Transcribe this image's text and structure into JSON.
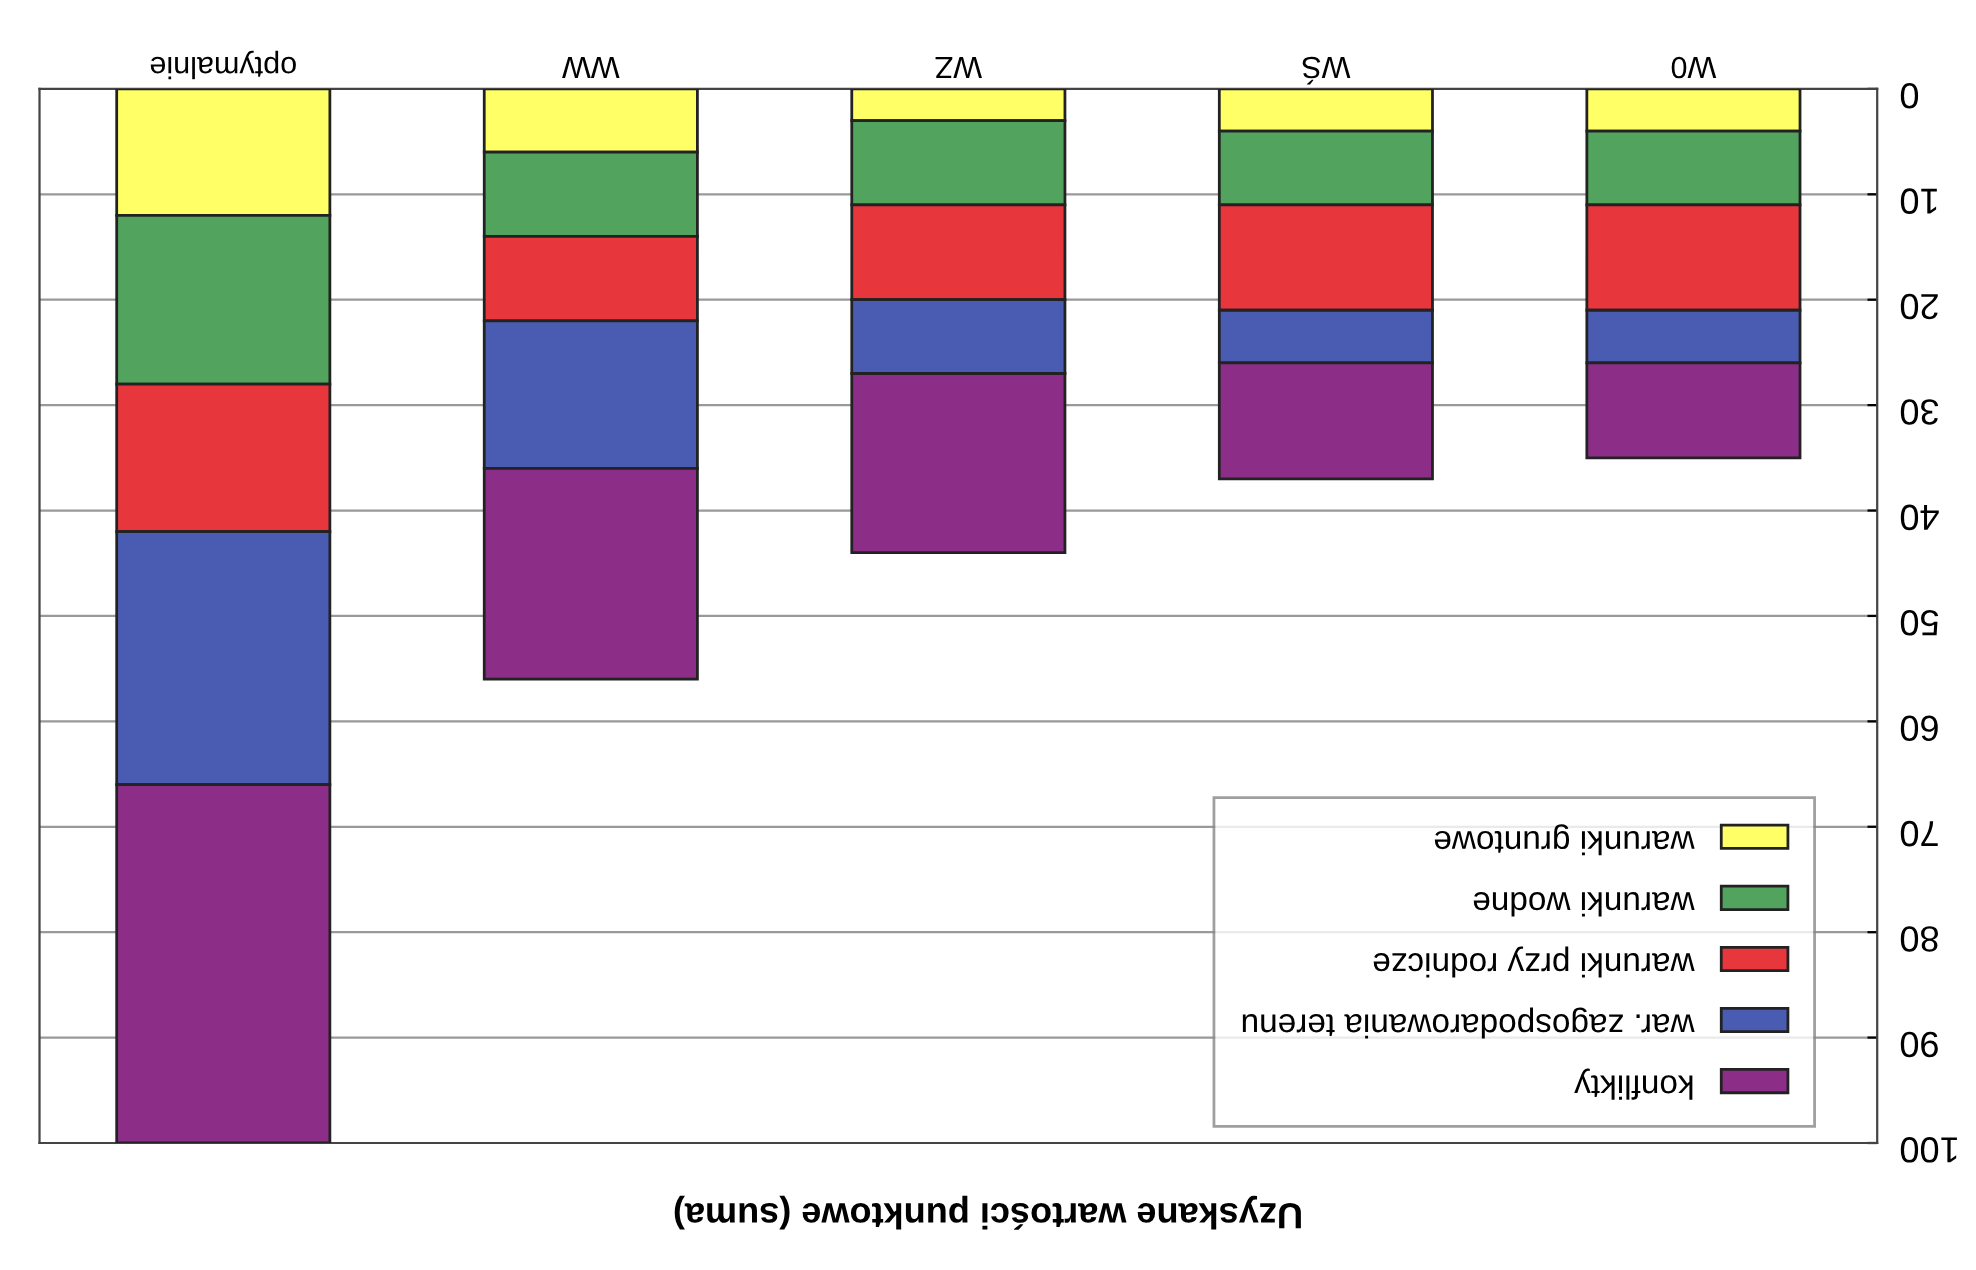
{
  "chart_data": {
    "type": "bar",
    "stacked": true,
    "title": "Uzyskane wartości punktowe (suma)",
    "categories": [
      "optymalnie",
      "WW",
      "WZ",
      "WŚ",
      "W0"
    ],
    "series": [
      {
        "name": "warunki gruntowe",
        "color": "#ffff66",
        "values": [
          12,
          6,
          3,
          4,
          4
        ]
      },
      {
        "name": "warunki wodne",
        "color": "#52a35e",
        "values": [
          16,
          8,
          8,
          7,
          7
        ]
      },
      {
        "name": "warunki przy rodnicze",
        "color": "#e8363d",
        "values": [
          14,
          8,
          9,
          10,
          10
        ]
      },
      {
        "name": "war. zagospodarowania terenu",
        "color": "#4a5cb2",
        "values": [
          24,
          14,
          7,
          5,
          5
        ]
      },
      {
        "name": "konflikty",
        "color": "#8c2e87",
        "values": [
          34,
          20,
          17,
          11,
          9
        ]
      }
    ],
    "ylim": [
      100,
      0
    ],
    "yticks": [
      0,
      10,
      20,
      30,
      40,
      50,
      60,
      70,
      80,
      90,
      100
    ],
    "grid": "y",
    "legend": "bottom right"
  }
}
